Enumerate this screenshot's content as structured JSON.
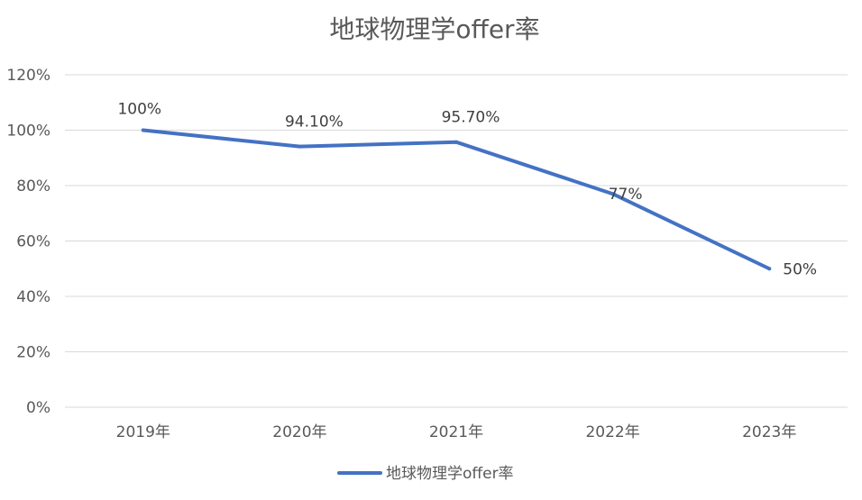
{
  "chart_data": {
    "type": "line",
    "title": "地球物理学offer率",
    "categories": [
      "2019年",
      "2020年",
      "2021年",
      "2022年",
      "2023年"
    ],
    "series": [
      {
        "name": "地球物理学offer率",
        "values": [
          100,
          94.1,
          95.7,
          77,
          50
        ],
        "labels": [
          "100%",
          "94.10%",
          "95.70%",
          "77%",
          "50%"
        ],
        "color": "#4472c4"
      }
    ],
    "ylim": [
      0,
      120
    ],
    "yticks": [
      "0%",
      "20%",
      "40%",
      "60%",
      "80%",
      "100%",
      "120%"
    ],
    "grid": true,
    "legend": "bottom"
  }
}
